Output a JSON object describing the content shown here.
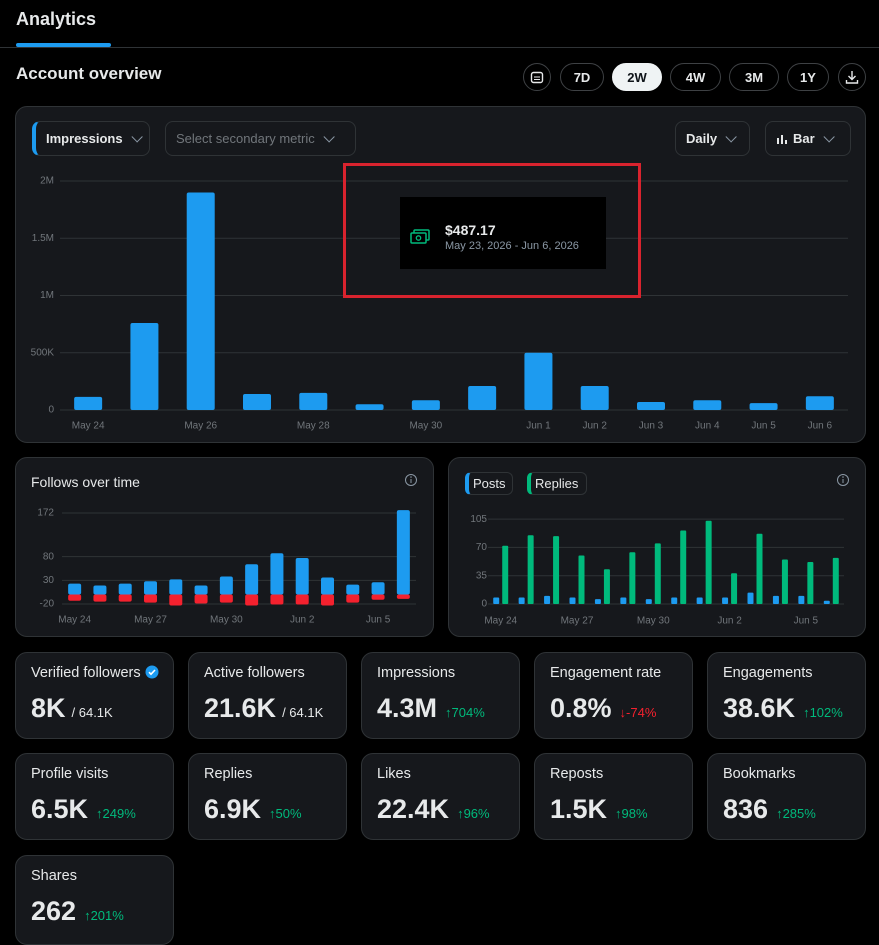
{
  "header": {
    "title": "Analytics"
  },
  "overview": {
    "title": "Account overview",
    "ranges": [
      "7D",
      "2W",
      "4W",
      "3M",
      "1Y"
    ],
    "active_range": 1,
    "primary_metric": "Impressions",
    "secondary_metric": "Select secondary metric",
    "interval": "Daily",
    "chart_style": "Bar"
  },
  "tooltip": {
    "amount": "$487.17",
    "range": "May 23, 2026 - Jun 6, 2026"
  },
  "chart_data": [
    {
      "type": "bar",
      "categories": [
        "May 24",
        null,
        "May 26",
        null,
        "May 28",
        null,
        "May 30",
        null,
        "Jun 1",
        "Jun 2",
        "Jun 3",
        "Jun 4",
        "Jun 5",
        "Jun 6"
      ],
      "series": [
        {
          "name": "Impressions",
          "color": "#1d9bf0",
          "values": [
            115000,
            760000,
            1900000,
            140000,
            150000,
            50000,
            85000,
            210000,
            500000,
            210000,
            70000,
            85000,
            60000,
            120000
          ]
        }
      ],
      "ylim": [
        0,
        2000000
      ],
      "yticks": [
        0,
        {
          "value": 500000,
          "label": "500K"
        },
        {
          "value": 1000000,
          "label": "1M"
        },
        {
          "value": 1500000,
          "label": "1.5M"
        },
        {
          "value": 2000000,
          "label": "2M"
        }
      ],
      "grid": true
    },
    {
      "type": "bar",
      "title": "Follows over time",
      "categories": [
        "May 24",
        null,
        null,
        "May 27",
        null,
        null,
        "May 30",
        null,
        null,
        "Jun 2",
        null,
        null,
        "Jun 5",
        null
      ],
      "series": [
        {
          "color": "#1d9bf0",
          "values": [
            23,
            19,
            23,
            28,
            32,
            19,
            38,
            64,
            87,
            77,
            36,
            21,
            26,
            178
          ]
        },
        {
          "color": "#f4212e",
          "values": [
            -13,
            -15,
            -15,
            -17,
            -23,
            -19,
            -17,
            -23,
            -21,
            -21,
            -23,
            -17,
            -11,
            -9
          ]
        }
      ],
      "ylim": [
        -25,
        180
      ],
      "yticks": [
        -20,
        30,
        80,
        172
      ],
      "grid": true
    },
    {
      "type": "grouped-bar",
      "categories": [
        "May 24",
        null,
        null,
        "May 27",
        null,
        null,
        "May 30",
        null,
        null,
        "Jun 2",
        null,
        null,
        "Jun 5",
        null
      ],
      "series": [
        {
          "name": "Posts",
          "color": "#1d9bf0",
          "values": [
            8,
            8,
            10,
            8,
            6,
            8,
            6,
            8,
            8,
            8,
            14,
            10,
            10,
            4
          ]
        },
        {
          "name": "Replies",
          "color": "#00ba7c",
          "values": [
            72,
            85,
            84,
            60,
            43,
            64,
            75,
            91,
            103,
            38,
            87,
            55,
            52,
            57
          ]
        }
      ],
      "ylim": [
        0,
        110
      ],
      "yticks": [
        0,
        35,
        70,
        105
      ],
      "grid": true
    }
  ],
  "stats": [
    {
      "label": "Verified followers",
      "value": "8K",
      "total": "/ 64.1K"
    },
    {
      "label": "Active followers",
      "value": "21.6K",
      "total": "/ 64.1K"
    },
    {
      "label": "Impressions",
      "value": "4.3M",
      "delta": "↑704%",
      "delta_color": "#00ba7c"
    },
    {
      "label": "Engagement rate",
      "value": "0.8%",
      "delta": "↓-74%",
      "delta_color": "#f4212e"
    },
    {
      "label": "Engagements",
      "value": "38.6K",
      "delta": "↑102%",
      "delta_color": "#00ba7c"
    },
    {
      "label": "Profile visits",
      "value": "6.5K",
      "delta": "↑249%",
      "delta_color": "#00ba7c"
    },
    {
      "label": "Replies",
      "value": "6.9K",
      "delta": "↑50%",
      "delta_color": "#00ba7c"
    },
    {
      "label": "Likes",
      "value": "22.4K",
      "delta": "↑96%",
      "delta_color": "#00ba7c"
    },
    {
      "label": "Reposts",
      "value": "1.5K",
      "delta": "↑98%",
      "delta_color": "#00ba7c"
    },
    {
      "label": "Bookmarks",
      "value": "836",
      "delta": "↑285%",
      "delta_color": "#00ba7c"
    },
    {
      "label": "Shares",
      "value": "262",
      "delta": "↑201%",
      "delta_color": "#00ba7c"
    }
  ]
}
